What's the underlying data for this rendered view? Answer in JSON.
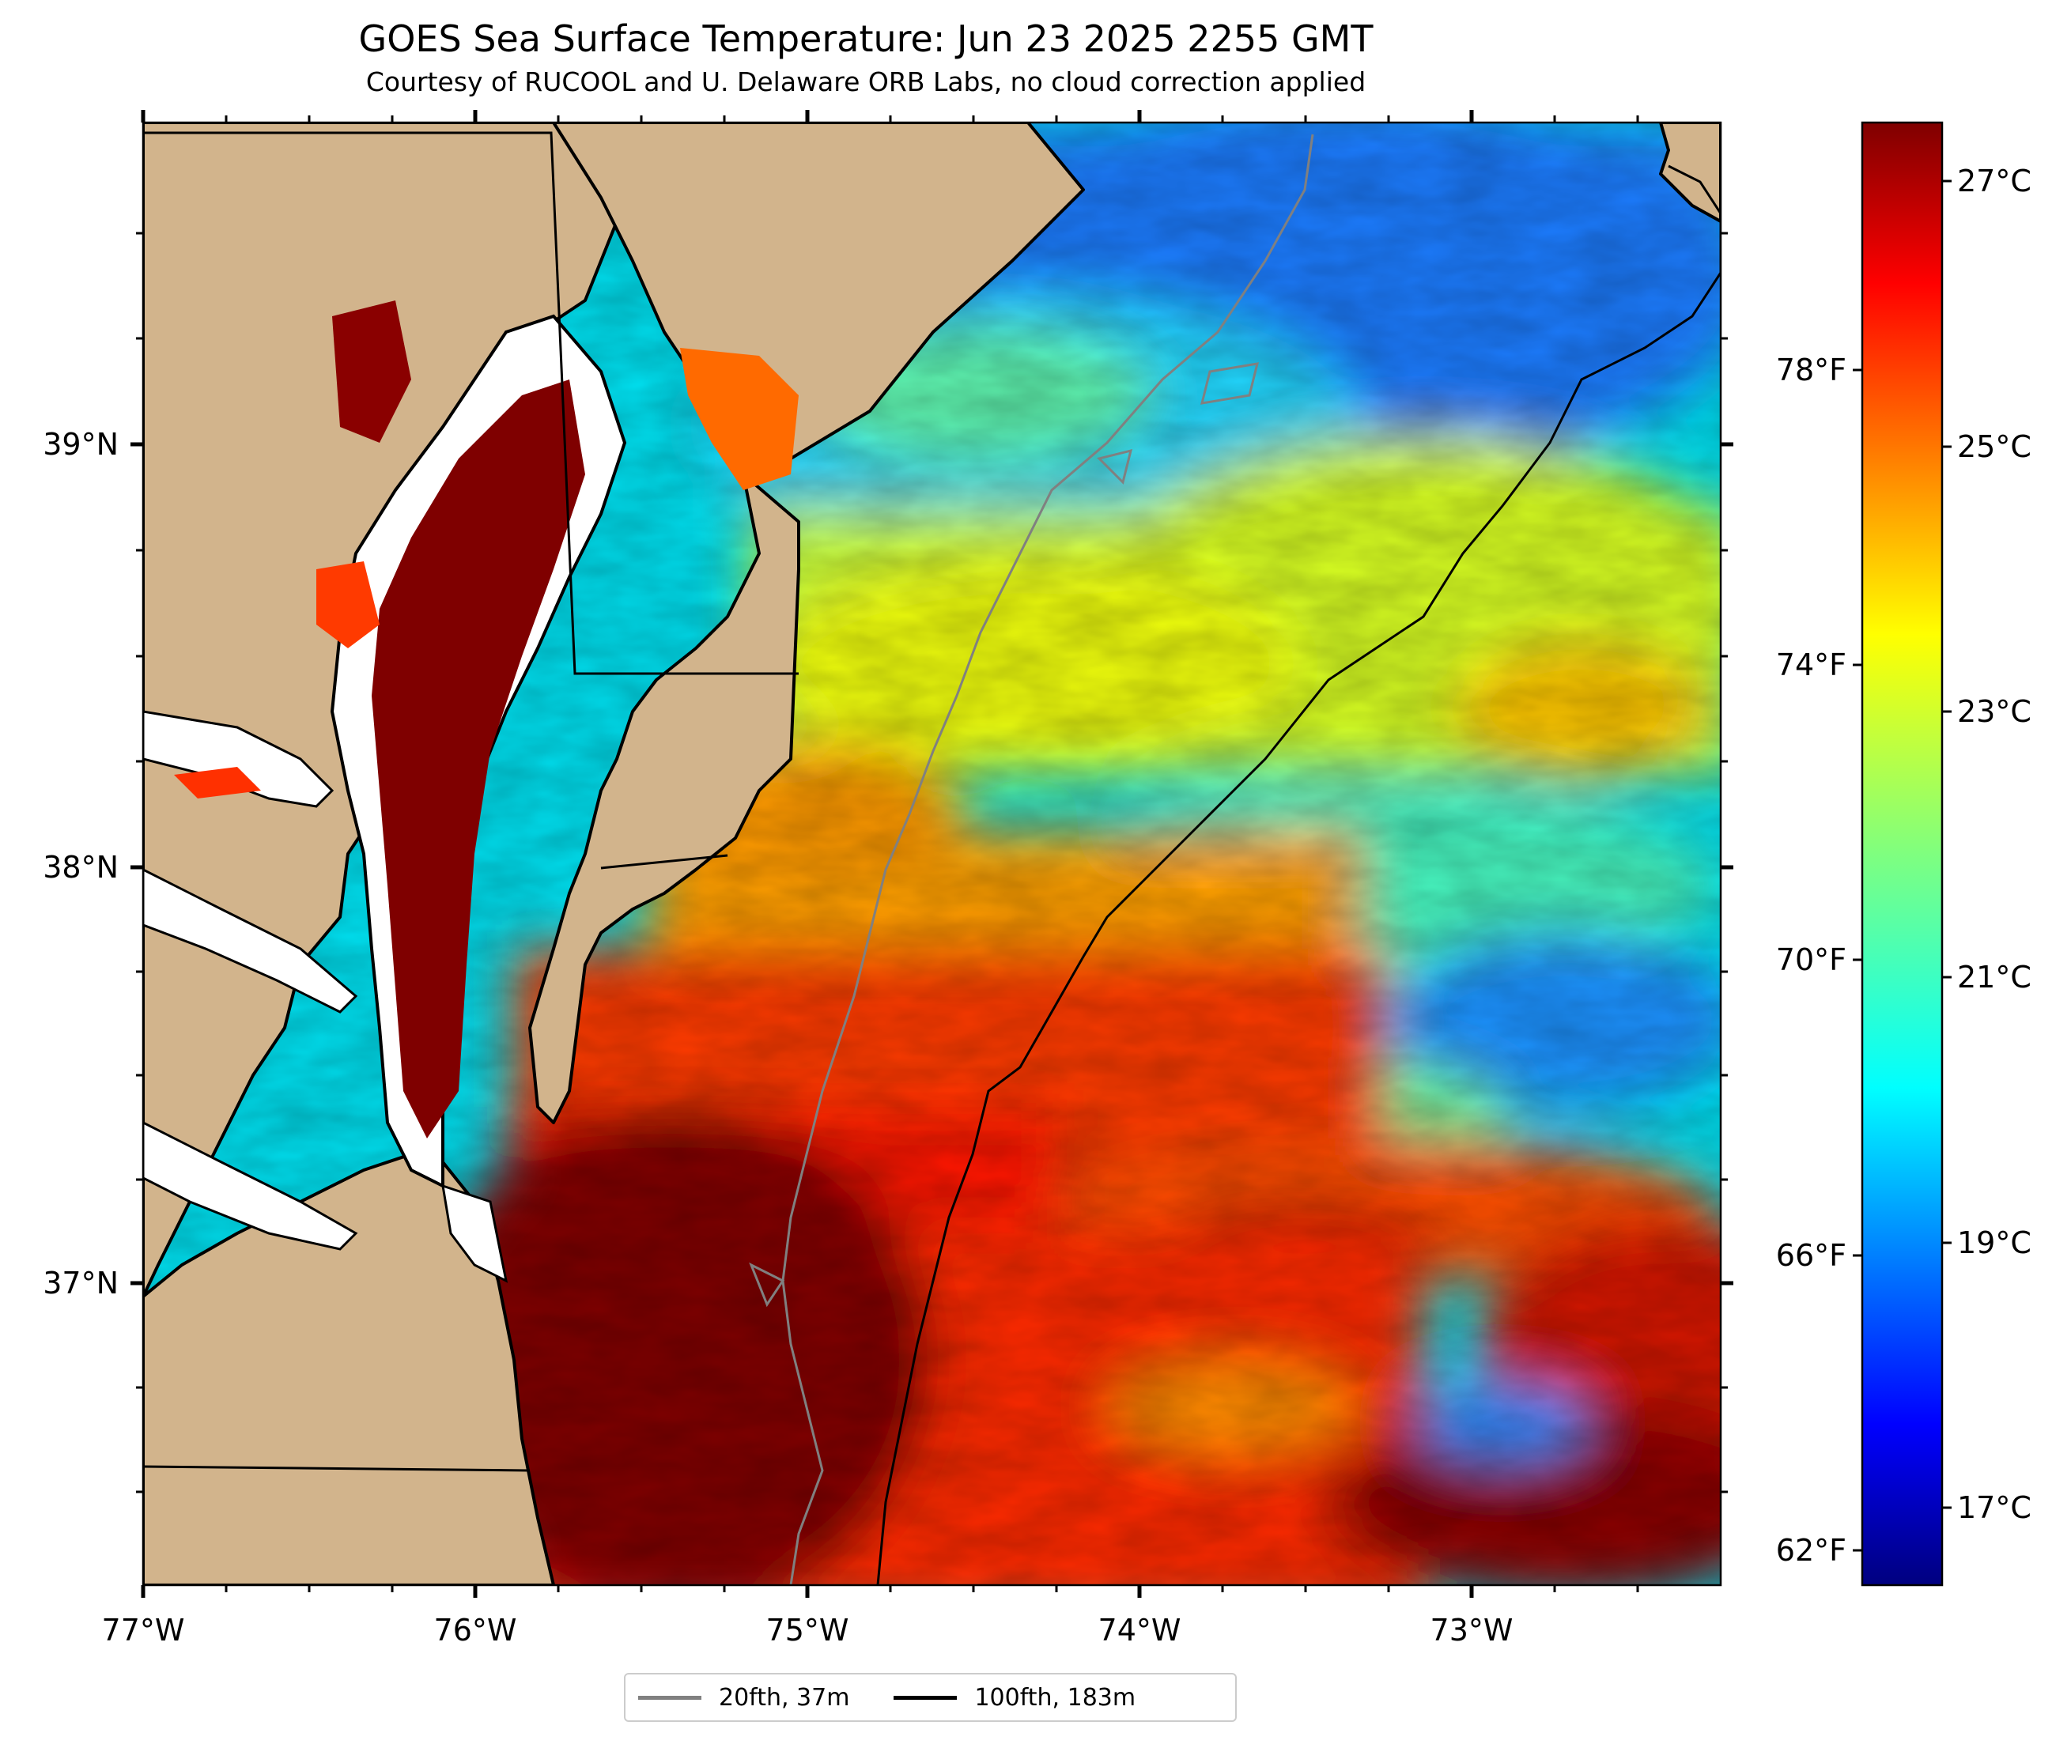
{
  "header": {
    "title": "GOES Sea Surface Temperature: Jun 23 2025 2255 GMT",
    "subtitle": "Courtesy of RUCOOL and U. Delaware ORB Labs, no cloud correction applied"
  },
  "map": {
    "lon_labels": [
      "77°W",
      "76°W",
      "75°W",
      "74°W",
      "73°W"
    ],
    "lat_labels": [
      "39°N",
      "38°N",
      "37°N"
    ],
    "colors": {
      "land": "#d2b48c",
      "coastline": "#000000",
      "isobath_20fth": "#808080",
      "isobath_100fth": "#000000"
    }
  },
  "colorbar": {
    "celsius_labels": [
      "27°C",
      "25°C",
      "23°C",
      "21°C",
      "19°C",
      "17°C"
    ],
    "fahrenheit_labels": [
      "78°F",
      "74°F",
      "70°F",
      "66°F",
      "62°F"
    ],
    "colormap": "jet"
  },
  "legend": {
    "items": [
      {
        "label": "20fth, 37m",
        "color": "#808080"
      },
      {
        "label": "100fth, 183m",
        "color": "#000000"
      }
    ]
  }
}
